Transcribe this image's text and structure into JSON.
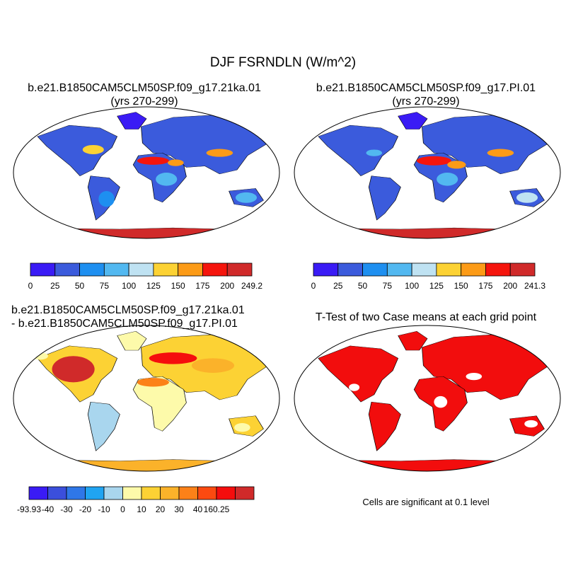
{
  "figure_title": "DJF FSRNDLN (W/m^2)",
  "panels": [
    {
      "id": "case1",
      "title_line1": "b.e21.B1850CAM5CLM50SP.f09_g17.21ka.01",
      "title_line2": "(yrs 270-299)",
      "colorbar": {
        "colors": [
          "#3a1bf5",
          "#3b5bdc",
          "#1e8ff0",
          "#52b8f0",
          "#bfe2f2",
          "#fcd234",
          "#fc9b17",
          "#f5150d",
          "#d02a2a"
        ],
        "labels": [
          "0",
          "25",
          "50",
          "75",
          "100",
          "125",
          "150",
          "175",
          "200",
          "249.2"
        ]
      }
    },
    {
      "id": "case2",
      "title_line1": "b.e21.B1850CAM5CLM50SP.f09_g17.PI.01",
      "title_line2": "(yrs 270-299)",
      "colorbar": {
        "colors": [
          "#3a1bf5",
          "#3b5bdc",
          "#1e8ff0",
          "#52b8f0",
          "#bfe2f2",
          "#fcd234",
          "#fc9b17",
          "#f5150d",
          "#d02a2a"
        ],
        "labels": [
          "0",
          "25",
          "50",
          "75",
          "100",
          "125",
          "150",
          "175",
          "200",
          "241.3"
        ]
      }
    },
    {
      "id": "diff",
      "title_line1": "b.e21.B1850CAM5CLM50SP.f09_g17.21ka.01",
      "title_line2": "- b.e21.B1850CAM5CLM50SP.f09_g17.PI.01",
      "colorbar": {
        "colors": [
          "#3a1bf5",
          "#3b4fdc",
          "#2f77e8",
          "#20a4f2",
          "#a9d6ee",
          "#fdfaaa",
          "#fcd234",
          "#fbb22a",
          "#fc8118",
          "#fc4a10",
          "#f50d0d",
          "#d02a2a"
        ],
        "labels": [
          "-93.93",
          "-40",
          "-30",
          "-20",
          "-10",
          "0",
          "10",
          "20",
          "30",
          "40",
          "160.25"
        ]
      }
    },
    {
      "id": "ttest",
      "title_line1": "T-Test of two Case means at each grid point",
      "note": "Cells are significant at 0.1 level",
      "color": "#f20d0d"
    }
  ]
}
